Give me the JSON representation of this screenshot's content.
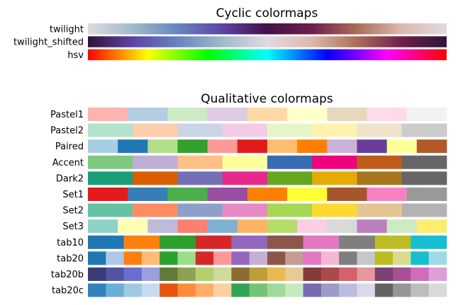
{
  "chart_data": [
    {
      "type": "colormap",
      "title": "Cyclic colormaps",
      "colormaps": [
        {
          "name": "twilight",
          "kind": "gradient",
          "stops": [
            "#e2d9e2",
            "#9ebbc9",
            "#6785be",
            "#5e43a5",
            "#421049",
            "#6f1f4d",
            "#a96e58",
            "#dcb9ac",
            "#e2d9e2"
          ]
        },
        {
          "name": "twilight_shifted",
          "kind": "gradient",
          "stops": [
            "#2f1436",
            "#5e43a5",
            "#6785be",
            "#9ebbc9",
            "#e2d9e2",
            "#dcb9ac",
            "#a96e58",
            "#6f1f4d",
            "#2f1436"
          ]
        },
        {
          "name": "hsv",
          "kind": "gradient",
          "stops": [
            "#ff0000",
            "#ffff00",
            "#00ff00",
            "#00ffff",
            "#0000ff",
            "#ff00ff",
            "#ff0000"
          ]
        }
      ]
    },
    {
      "type": "colormap",
      "title": "Qualitative colormaps",
      "colormaps": [
        {
          "name": "Pastel1",
          "kind": "discrete",
          "colors": [
            "#fbb4ae",
            "#b3cde3",
            "#ccebc5",
            "#decbe4",
            "#fed9a6",
            "#ffffcc",
            "#e5d8bd",
            "#fddaec",
            "#f2f2f2"
          ]
        },
        {
          "name": "Pastel2",
          "kind": "discrete",
          "colors": [
            "#b3e2cd",
            "#fdcdac",
            "#cbd5e8",
            "#f4cae4",
            "#e6f5c9",
            "#fff2ae",
            "#f1e2cc",
            "#cccccc"
          ]
        },
        {
          "name": "Paired",
          "kind": "discrete",
          "colors": [
            "#a6cee3",
            "#1f78b4",
            "#b2df8a",
            "#33a02c",
            "#fb9a99",
            "#e31a1c",
            "#fdbf6f",
            "#ff7f00",
            "#cab2d6",
            "#6a3d9a",
            "#ffff99",
            "#b15928"
          ]
        },
        {
          "name": "Accent",
          "kind": "discrete",
          "colors": [
            "#7fc97f",
            "#beaed4",
            "#fdc086",
            "#ffff99",
            "#386cb0",
            "#f0027f",
            "#bf5b17",
            "#666666"
          ]
        },
        {
          "name": "Dark2",
          "kind": "discrete",
          "colors": [
            "#1b9e77",
            "#d95f02",
            "#7570b3",
            "#e7298a",
            "#66a61e",
            "#e6ab02",
            "#a6761d",
            "#666666"
          ]
        },
        {
          "name": "Set1",
          "kind": "discrete",
          "colors": [
            "#e41a1c",
            "#377eb8",
            "#4daf4a",
            "#984ea3",
            "#ff7f00",
            "#ffff33",
            "#a65628",
            "#f781bf",
            "#999999"
          ]
        },
        {
          "name": "Set2",
          "kind": "discrete",
          "colors": [
            "#66c2a5",
            "#fc8d62",
            "#8da0cb",
            "#e78ac3",
            "#a6d854",
            "#ffd92f",
            "#e5c494",
            "#b3b3b3"
          ]
        },
        {
          "name": "Set3",
          "kind": "discrete",
          "colors": [
            "#8dd3c7",
            "#ffffb3",
            "#bebada",
            "#fb8072",
            "#80b1d3",
            "#fdb462",
            "#b3de69",
            "#fccde5",
            "#d9d9d9",
            "#bc80bd",
            "#ccebc5",
            "#ffed6f"
          ]
        },
        {
          "name": "tab10",
          "kind": "discrete",
          "colors": [
            "#1f77b4",
            "#ff7f0e",
            "#2ca02c",
            "#d62728",
            "#9467bd",
            "#8c564b",
            "#e377c2",
            "#7f7f7f",
            "#bcbd22",
            "#17becf"
          ]
        },
        {
          "name": "tab20",
          "kind": "discrete",
          "colors": [
            "#1f77b4",
            "#aec7e8",
            "#ff7f0e",
            "#ffbb78",
            "#2ca02c",
            "#98df8a",
            "#d62728",
            "#ff9896",
            "#9467bd",
            "#c5b0d5",
            "#8c564b",
            "#c49c94",
            "#e377c2",
            "#f7b6d2",
            "#7f7f7f",
            "#c7c7c7",
            "#bcbd22",
            "#dbdb8d",
            "#17becf",
            "#9edae5"
          ]
        },
        {
          "name": "tab20b",
          "kind": "discrete",
          "colors": [
            "#393b79",
            "#5254a3",
            "#6b6ecf",
            "#9c9ede",
            "#637939",
            "#8ca252",
            "#b5cf6b",
            "#cedb9c",
            "#8c6d31",
            "#bd9e39",
            "#e7ba52",
            "#e7cb94",
            "#843c39",
            "#ad494a",
            "#d6616b",
            "#e7969c",
            "#7b4173",
            "#a55194",
            "#ce6dbd",
            "#de9ed6"
          ]
        },
        {
          "name": "tab20c",
          "kind": "discrete",
          "colors": [
            "#3182bd",
            "#6baed6",
            "#9ecae1",
            "#c6dbef",
            "#e6550d",
            "#fd8d3c",
            "#fdae6b",
            "#fdd0a2",
            "#31a354",
            "#74c476",
            "#a1d99b",
            "#c7e9c0",
            "#756bb1",
            "#9e9ac8",
            "#bcbddc",
            "#dadaeb",
            "#636363",
            "#969696",
            "#bdbdbd",
            "#d9d9d9"
          ]
        }
      ]
    }
  ]
}
